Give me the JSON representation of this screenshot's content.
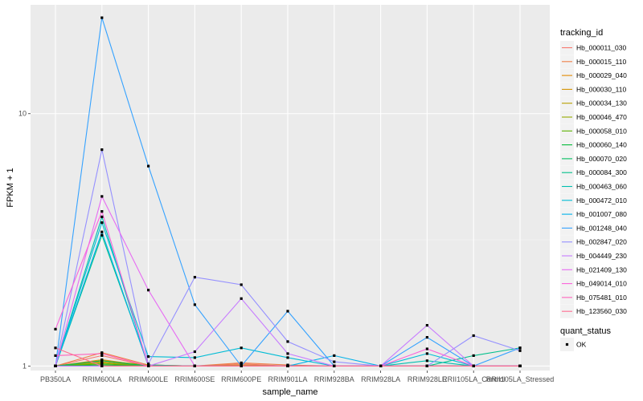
{
  "chart_data": {
    "type": "line",
    "xlabel": "sample_name",
    "ylabel": "FPKM + 1",
    "y_scale": "log10",
    "ylim": [
      0.96,
      27
    ],
    "y_ticks": [
      {
        "value": 1,
        "label": "1"
      },
      {
        "value": 10,
        "label": "10"
      }
    ],
    "grid": true,
    "legend_placement": "right",
    "categories": [
      "PB350LA",
      "RRIM600LA",
      "RRIM600LE",
      "RRIM600SE",
      "RRIM600PE",
      "RRIM901LA",
      "RRIM928BA",
      "RRIM928LA",
      "RRIM928LE",
      "RRII105LA_Control",
      "RRII105LA_Stressed"
    ],
    "color_legend_title": "tracking_id",
    "shape_legend_title": "quant_status",
    "shape_legend_entries": [
      "OK"
    ],
    "series": [
      {
        "name": "Hb_000011_030",
        "color": "#F8766D",
        "values": [
          1.0,
          1.1,
          1.0,
          1.0,
          1.02,
          1.0,
          1.0,
          1.0,
          1.0,
          1.0,
          1.0
        ]
      },
      {
        "name": "Hb_000015_110",
        "color": "#EF7F47",
        "values": [
          1.0,
          1.13,
          1.01,
          1.0,
          1.03,
          1.01,
          1.0,
          1.0,
          1.0,
          1.0,
          1.0
        ]
      },
      {
        "name": "Hb_000029_040",
        "color": "#E38900",
        "values": [
          1.0,
          1.06,
          1.0,
          1.0,
          1.01,
          1.0,
          1.0,
          1.0,
          1.0,
          1.0,
          1.0
        ]
      },
      {
        "name": "Hb_000030_110",
        "color": "#D39200",
        "values": [
          1.0,
          1.04,
          1.0,
          1.0,
          1.0,
          1.0,
          1.0,
          1.0,
          1.0,
          1.0,
          1.0
        ]
      },
      {
        "name": "Hb_000034_130",
        "color": "#B79F00",
        "values": [
          1.0,
          1.05,
          1.01,
          1.0,
          1.0,
          1.0,
          1.0,
          1.0,
          1.0,
          1.0,
          1.0
        ]
      },
      {
        "name": "Hb_000046_470",
        "color": "#95A900",
        "values": [
          1.0,
          1.03,
          1.0,
          1.0,
          1.0,
          1.0,
          1.0,
          1.0,
          1.0,
          1.0,
          1.0
        ]
      },
      {
        "name": "Hb_000058_010",
        "color": "#5BB300",
        "values": [
          1.0,
          1.02,
          1.0,
          1.0,
          1.0,
          1.0,
          1.0,
          1.0,
          1.0,
          1.0,
          1.0
        ]
      },
      {
        "name": "Hb_000060_140",
        "color": "#00BA38",
        "values": [
          1.0,
          1.01,
          1.0,
          1.0,
          1.0,
          1.0,
          1.0,
          1.0,
          1.0,
          1.0,
          1.0
        ]
      },
      {
        "name": "Hb_000070_020",
        "color": "#00BD5F",
        "values": [
          1.0,
          1.05,
          1.0,
          1.0,
          1.0,
          1.0,
          1.0,
          1.0,
          1.0,
          1.0,
          1.0
        ]
      },
      {
        "name": "Hb_000084_300",
        "color": "#00C08B",
        "values": [
          1.0,
          3.3,
          1.01,
          1.0,
          1.0,
          1.0,
          1.0,
          1.0,
          1.0,
          1.1,
          1.18
        ]
      },
      {
        "name": "Hb_000463_060",
        "color": "#00BFB0",
        "values": [
          1.0,
          3.9,
          1.0,
          1.0,
          1.0,
          1.0,
          1.0,
          1.0,
          1.05,
          1.0,
          1.0
        ]
      },
      {
        "name": "Hb_000472_010",
        "color": "#00BCD5",
        "values": [
          1.0,
          3.7,
          1.09,
          1.08,
          1.18,
          1.08,
          1.0,
          1.0,
          1.12,
          1.0,
          1.0
        ]
      },
      {
        "name": "Hb_001007_080",
        "color": "#00B2EA",
        "values": [
          1.0,
          3.4,
          1.0,
          1.0,
          1.0,
          1.0,
          1.1,
          1.0,
          1.0,
          1.0,
          1.0
        ]
      },
      {
        "name": "Hb_001248_040",
        "color": "#35A2FF",
        "values": [
          1.0,
          24.0,
          6.2,
          1.75,
          1.0,
          1.65,
          1.0,
          1.0,
          1.3,
          1.0,
          1.18
        ]
      },
      {
        "name": "Hb_002847_020",
        "color": "#9590FF",
        "values": [
          1.0,
          7.2,
          1.02,
          2.25,
          2.1,
          1.25,
          1.04,
          1.0,
          1.0,
          1.32,
          1.15
        ]
      },
      {
        "name": "Hb_004449_230",
        "color": "#C77CFF",
        "values": [
          1.0,
          1.0,
          1.0,
          1.14,
          1.85,
          1.12,
          1.0,
          1.0,
          1.45,
          1.0,
          1.0
        ]
      },
      {
        "name": "Hb_021409_130",
        "color": "#E76BF3",
        "values": [
          1.0,
          4.7,
          2.0,
          1.0,
          1.0,
          1.0,
          1.0,
          1.0,
          1.0,
          1.0,
          1.0
        ]
      },
      {
        "name": "Hb_049014_010",
        "color": "#FA62DB",
        "values": [
          1.4,
          4.1,
          1.0,
          1.0,
          1.0,
          1.0,
          1.0,
          1.0,
          1.17,
          1.0,
          1.0
        ]
      },
      {
        "name": "Hb_075481_010",
        "color": "#FF62BC",
        "values": [
          1.1,
          1.12,
          1.0,
          1.0,
          1.0,
          1.0,
          1.0,
          1.0,
          1.0,
          1.0,
          1.0
        ]
      },
      {
        "name": "Hb_123560_030",
        "color": "#FF6C91",
        "values": [
          1.18,
          1.0,
          1.0,
          1.0,
          1.0,
          1.0,
          1.0,
          1.0,
          1.0,
          1.0,
          1.0
        ]
      }
    ]
  }
}
